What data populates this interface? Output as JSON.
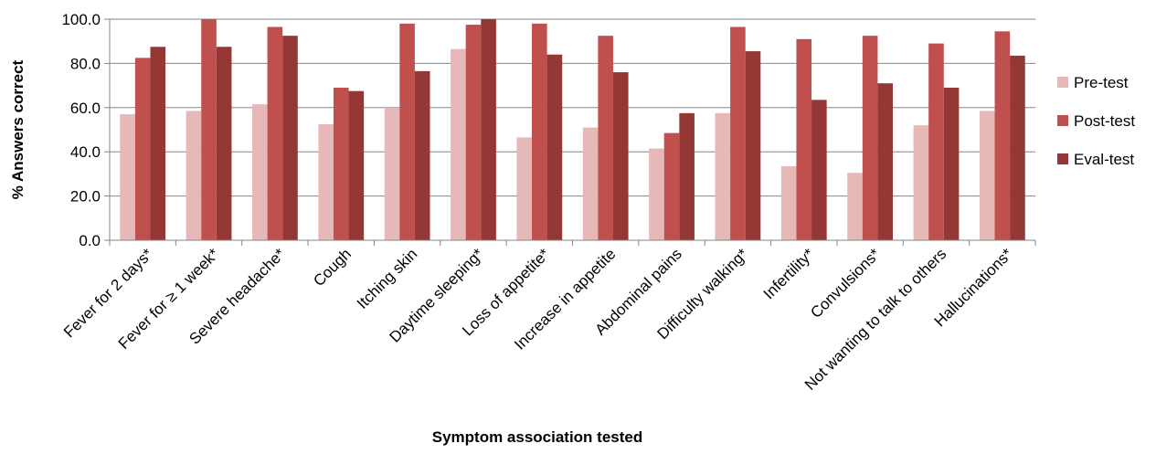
{
  "chart_data": {
    "type": "bar",
    "title": "",
    "xlabel": "Symptom association tested",
    "ylabel": "% Answers correct",
    "ylim": [
      0,
      100
    ],
    "yticks": [
      "0.0",
      "20.0",
      "40.0",
      "60.0",
      "80.0",
      "100.0"
    ],
    "grid": true,
    "legend_position": "right",
    "categories": [
      "Fever for 2 days*",
      "Fever for ≥ 1 week*",
      "Severe headache*",
      "Cough",
      "Itching skin",
      "Daytime sleeping*",
      "Loss of appetite*",
      "Increase in appetite",
      "Abdominal pains",
      "Difficulty walking*",
      "Infertility*",
      "Convulsions*",
      "Not wanting to talk to others",
      "Hallucinations*"
    ],
    "series": [
      {
        "name": "Pre-test",
        "color": "#e6b9b8",
        "values": [
          57,
          58.5,
          61.5,
          52.5,
          60,
          86.5,
          46.5,
          51,
          41.5,
          57.5,
          33.5,
          30.5,
          52,
          58.5
        ]
      },
      {
        "name": "Post-test",
        "color": "#c0504d",
        "values": [
          82.5,
          100,
          96.5,
          69,
          98,
          97.5,
          98,
          92.5,
          48.5,
          96.5,
          91,
          92.5,
          89,
          94.5
        ]
      },
      {
        "name": "Eval-test",
        "color": "#953735",
        "values": [
          87.5,
          87.5,
          92.5,
          67.5,
          76.5,
          100,
          84,
          76,
          57.5,
          85.5,
          63.5,
          71,
          69,
          83.5
        ]
      }
    ]
  }
}
